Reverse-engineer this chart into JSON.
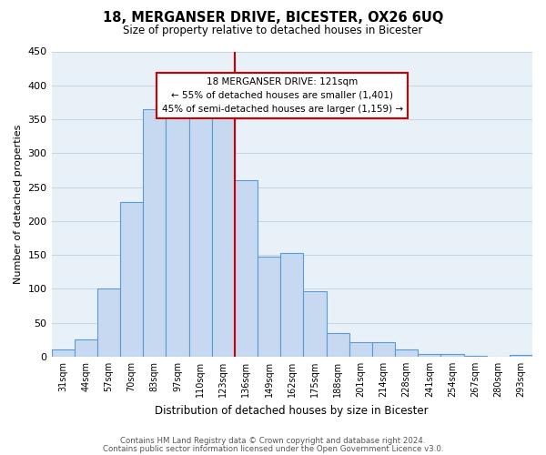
{
  "title": "18, MERGANSER DRIVE, BICESTER, OX26 6UQ",
  "subtitle": "Size of property relative to detached houses in Bicester",
  "xlabel": "Distribution of detached houses by size in Bicester",
  "ylabel": "Number of detached properties",
  "footer_line1": "Contains HM Land Registry data © Crown copyright and database right 2024.",
  "footer_line2": "Contains public sector information licensed under the Open Government Licence v3.0.",
  "bin_labels": [
    "31sqm",
    "44sqm",
    "57sqm",
    "70sqm",
    "83sqm",
    "97sqm",
    "110sqm",
    "123sqm",
    "136sqm",
    "149sqm",
    "162sqm",
    "175sqm",
    "188sqm",
    "201sqm",
    "214sqm",
    "228sqm",
    "241sqm",
    "254sqm",
    "267sqm",
    "280sqm",
    "293sqm"
  ],
  "bar_values": [
    10,
    25,
    100,
    228,
    365,
    370,
    375,
    355,
    260,
    148,
    153,
    97,
    35,
    22,
    22,
    11,
    4,
    4,
    1,
    0,
    3
  ],
  "bar_color": "#c6d9f0",
  "bar_edge_color": "#5b9bd5",
  "highlight_bin_index": 7,
  "highlight_line_color": "#cc0000",
  "annotation_line1": "18 MERGANSER DRIVE: 121sqm",
  "annotation_line2": "← 55% of detached houses are smaller (1,401)",
  "annotation_line3": "45% of semi-detached houses are larger (1,159) →",
  "annotation_edge_color": "#cc0000",
  "annotation_face_color": "#ffffff",
  "ylim": [
    0,
    450
  ],
  "yticks": [
    0,
    50,
    100,
    150,
    200,
    250,
    300,
    350,
    400,
    450
  ],
  "bg_color": "#ffffff",
  "axes_bg_color": "#e8f0f8",
  "grid_color": "#c8d4e0"
}
